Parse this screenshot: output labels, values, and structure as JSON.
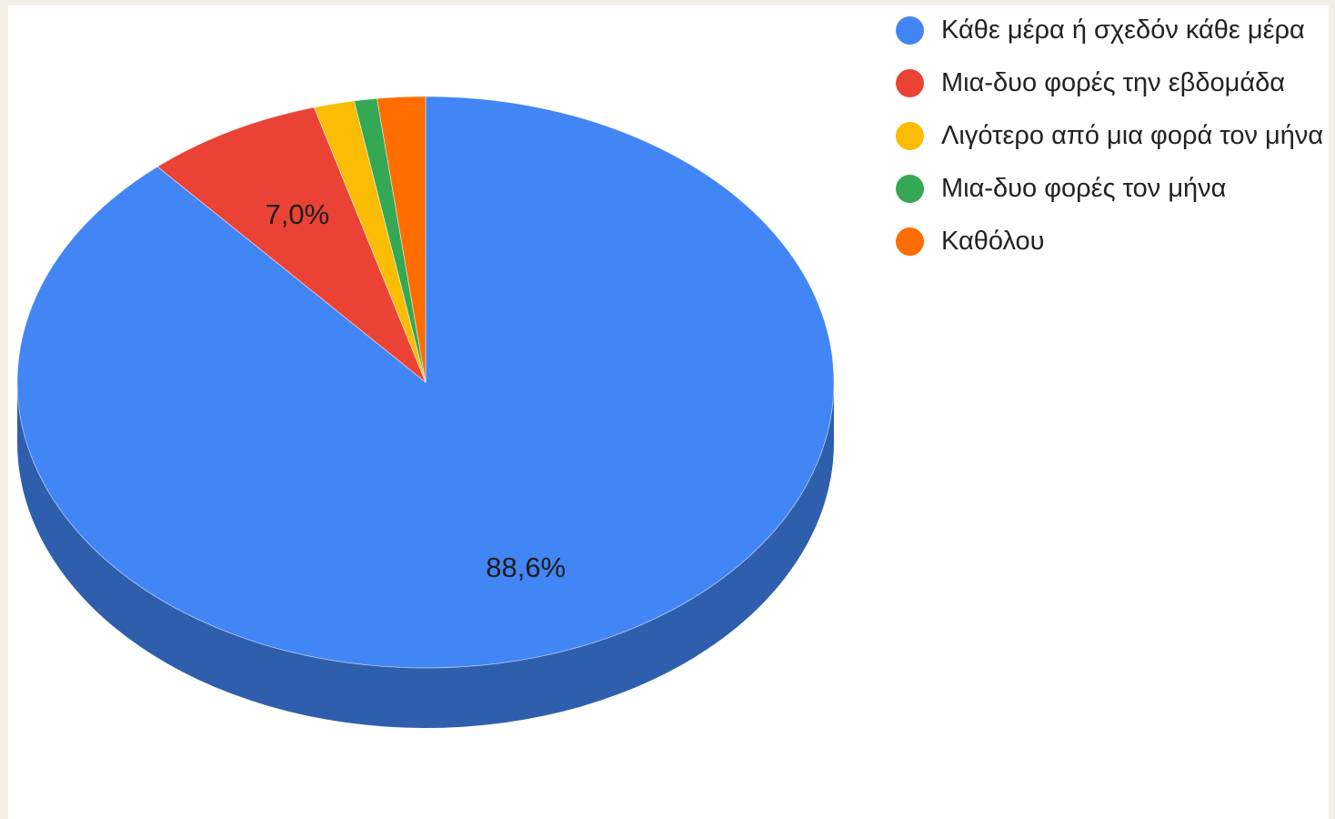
{
  "chart_data": {
    "type": "pie",
    "style": "3d",
    "categories": [
      "Κάθε μέρα ή σχεδόν κάθε μέρα",
      "Μια-δυο φορές την εβδομάδα",
      "Λιγότερο από μια φορά τον μήνα",
      "Μια-δυο φορές τον μήνα",
      "Καθόλου"
    ],
    "values": [
      88.6,
      7.0,
      1.6,
      0.9,
      1.9
    ],
    "data_labels": [
      "88,6%",
      "7,0%",
      "",
      "",
      ""
    ],
    "colors": [
      "#4285f4",
      "#ea4335",
      "#fbbc04",
      "#34a853",
      "#ff6d01"
    ],
    "side_colors": [
      "#2f5ead",
      "#a52f25",
      "#b08503",
      "#247538",
      "#b44d01"
    ],
    "legend_position": "right",
    "title": ""
  }
}
